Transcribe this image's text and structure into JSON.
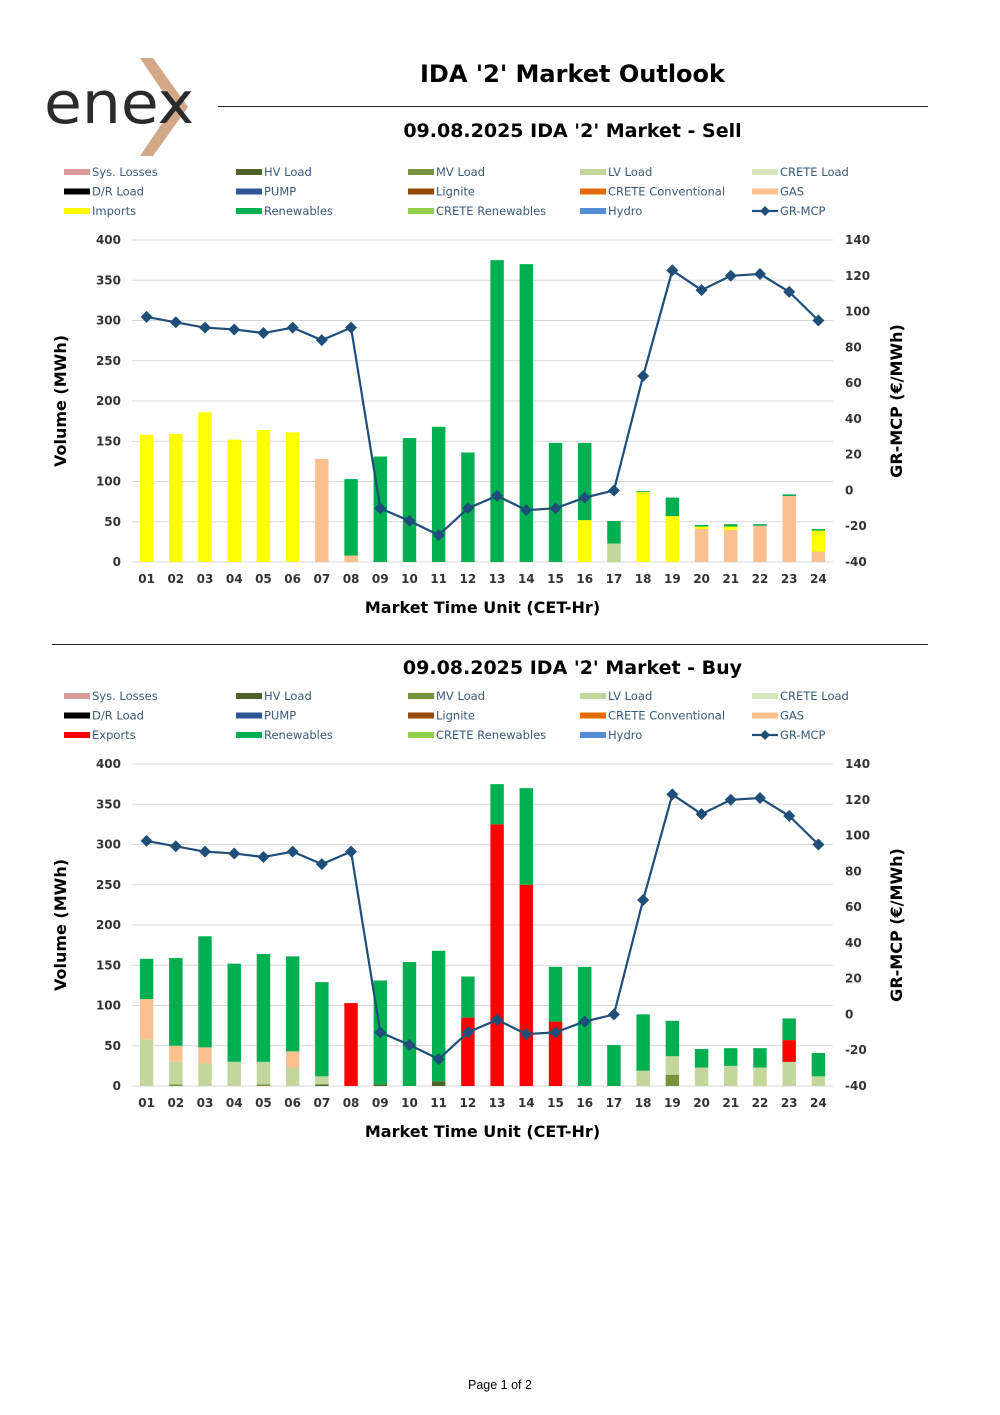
{
  "brand": {
    "logo_text": "enex",
    "colors": {
      "text": "#2b2b2b",
      "accent": "#d3a78a"
    }
  },
  "header": {
    "title": "IDA '2' Market Outlook"
  },
  "footer": {
    "page_label": "Page 1 of 2"
  },
  "legend_colors": {
    "Sys. Losses": "#d99a9a",
    "HV Load": "#4f6228",
    "MV Load": "#77933c",
    "LV Load": "#c3d69b",
    "CRETE Load": "#d7e4bd",
    "D/R Load": "#000000",
    "PUMP": "#2f5597",
    "Lignite": "#974706",
    "CRETE Conventional": "#e36c09",
    "GAS": "#fac090",
    "Imports": "#ffff00",
    "Exports": "#ff0000",
    "Renewables": "#00b050",
    "CRETE Renewables": "#92d050",
    "Hydro": "#558ed5",
    "GR-MCP": "#1f4e79"
  },
  "chart_data": [
    {
      "type": "bar",
      "subtype": "stacked-bar-with-line",
      "title": "09.08.2025  IDA '2' Market - Sell",
      "xlabel": "Market Time Unit (CET-Hr)",
      "ylabel": "Volume (MWh)",
      "y2label": "GR-MCP (€/MWh)",
      "ylim": [
        0,
        400
      ],
      "yticks": [
        0,
        50,
        100,
        150,
        200,
        250,
        300,
        350,
        400
      ],
      "y2lim": [
        -40,
        140
      ],
      "y2ticks": [
        -40,
        -20,
        0,
        20,
        40,
        60,
        80,
        100,
        120,
        140
      ],
      "grid": true,
      "legend_position": "top",
      "legend": [
        "Sys. Losses",
        "HV Load",
        "MV Load",
        "LV Load",
        "CRETE Load",
        "D/R Load",
        "PUMP",
        "Lignite",
        "CRETE Conventional",
        "GAS",
        "Imports",
        "Renewables",
        "CRETE Renewables",
        "Hydro",
        "GR-MCP"
      ],
      "categories": [
        "01",
        "02",
        "03",
        "04",
        "05",
        "06",
        "07",
        "08",
        "09",
        "10",
        "11",
        "12",
        "13",
        "14",
        "15",
        "16",
        "17",
        "18",
        "19",
        "20",
        "21",
        "22",
        "23",
        "24"
      ],
      "series": [
        {
          "name": "LV Load",
          "values": [
            0,
            0,
            0,
            0,
            0,
            0,
            0,
            0,
            0,
            0,
            0,
            0,
            0,
            0,
            0,
            0,
            23,
            0,
            0,
            0,
            0,
            0,
            0,
            0
          ]
        },
        {
          "name": "GAS",
          "values": [
            0,
            0,
            0,
            0,
            0,
            0,
            128,
            8,
            0,
            0,
            0,
            0,
            0,
            0,
            0,
            0,
            0,
            0,
            0,
            41,
            40,
            45,
            82,
            13
          ]
        },
        {
          "name": "Imports",
          "values": [
            158,
            159,
            186,
            152,
            164,
            161,
            0,
            0,
            0,
            0,
            0,
            0,
            0,
            0,
            0,
            52,
            0,
            87,
            57,
            3,
            4,
            0,
            0,
            26
          ]
        },
        {
          "name": "Renewables",
          "values": [
            0,
            0,
            0,
            0,
            0,
            0,
            0,
            95,
            131,
            154,
            168,
            136,
            375,
            370,
            148,
            96,
            28,
            1,
            23,
            2,
            3,
            2,
            2,
            2
          ]
        }
      ],
      "line": {
        "name": "GR-MCP",
        "values": [
          97,
          94,
          91,
          90,
          88,
          91,
          84,
          91,
          -10,
          -17,
          -25,
          -10,
          -3,
          -11,
          -10,
          -4,
          0,
          64,
          123,
          112,
          120,
          121,
          111,
          95
        ]
      }
    },
    {
      "type": "bar",
      "subtype": "stacked-bar-with-line",
      "title": "09.08.2025  IDA '2' Market - Buy",
      "xlabel": "Market Time Unit (CET-Hr)",
      "ylabel": "Volume (MWh)",
      "y2label": "GR-MCP (€/MWh)",
      "ylim": [
        0,
        400
      ],
      "yticks": [
        0,
        50,
        100,
        150,
        200,
        250,
        300,
        350,
        400
      ],
      "y2lim": [
        -40,
        140
      ],
      "y2ticks": [
        -40,
        -20,
        0,
        20,
        40,
        60,
        80,
        100,
        120,
        140
      ],
      "grid": true,
      "legend_position": "top",
      "legend": [
        "Sys. Losses",
        "HV Load",
        "MV Load",
        "LV Load",
        "CRETE Load",
        "D/R Load",
        "PUMP",
        "Lignite",
        "CRETE Conventional",
        "GAS",
        "Exports",
        "Renewables",
        "CRETE Renewables",
        "Hydro",
        "GR-MCP"
      ],
      "categories": [
        "01",
        "02",
        "03",
        "04",
        "05",
        "06",
        "07",
        "08",
        "09",
        "10",
        "11",
        "12",
        "13",
        "14",
        "15",
        "16",
        "17",
        "18",
        "19",
        "20",
        "21",
        "22",
        "23",
        "24"
      ],
      "series": [
        {
          "name": "D/R Load",
          "values": [
            0,
            0,
            0,
            0,
            0,
            0,
            0,
            0,
            0,
            0,
            0,
            0,
            0,
            0,
            0,
            0,
            0,
            0,
            0,
            0,
            0,
            0,
            0,
            0
          ]
        },
        {
          "name": "HV Load",
          "values": [
            0,
            0,
            0,
            0,
            0,
            0,
            2,
            0,
            2,
            0,
            6,
            0,
            0,
            0,
            0,
            0,
            0,
            0,
            0,
            0,
            0,
            0,
            0,
            0
          ]
        },
        {
          "name": "MV Load",
          "values": [
            0,
            2,
            0,
            0,
            2,
            0,
            0,
            0,
            0,
            0,
            0,
            0,
            0,
            0,
            0,
            0,
            0,
            0,
            14,
            0,
            0,
            0,
            0,
            0
          ]
        },
        {
          "name": "LV Load",
          "values": [
            58,
            28,
            28,
            30,
            28,
            23,
            10,
            0,
            0,
            0,
            0,
            0,
            0,
            0,
            0,
            0,
            0,
            19,
            23,
            23,
            25,
            23,
            30,
            12
          ]
        },
        {
          "name": "GAS",
          "values": [
            50,
            20,
            20,
            0,
            0,
            20,
            0,
            0,
            0,
            0,
            0,
            0,
            0,
            0,
            0,
            0,
            0,
            0,
            0,
            0,
            0,
            0,
            0,
            0
          ]
        },
        {
          "name": "Exports",
          "values": [
            0,
            0,
            0,
            0,
            0,
            0,
            0,
            103,
            0,
            0,
            0,
            85,
            325,
            250,
            80,
            0,
            0,
            0,
            0,
            0,
            0,
            0,
            27,
            0
          ]
        },
        {
          "name": "Renewables",
          "values": [
            50,
            109,
            138,
            122,
            134,
            118,
            117,
            0,
            129,
            154,
            162,
            51,
            50,
            120,
            68,
            148,
            51,
            70,
            44,
            23,
            22,
            24,
            27,
            29
          ]
        }
      ],
      "line": {
        "name": "GR-MCP",
        "values": [
          97,
          94,
          91,
          90,
          88,
          91,
          84,
          91,
          -10,
          -17,
          -25,
          -10,
          -3,
          -11,
          -10,
          -4,
          0,
          64,
          123,
          112,
          120,
          121,
          111,
          95
        ]
      }
    }
  ]
}
